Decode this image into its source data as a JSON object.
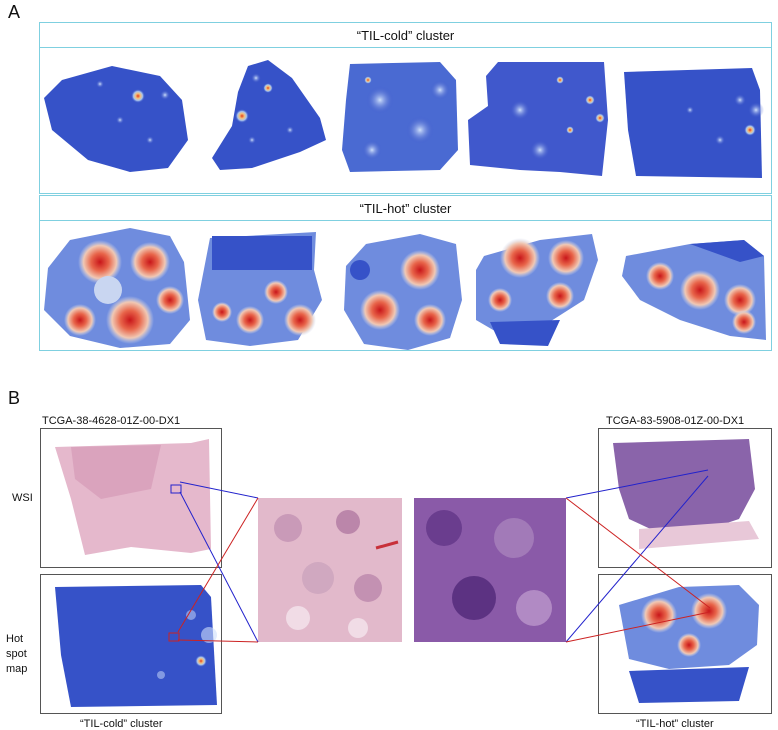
{
  "panel_a": {
    "letter": "A",
    "cold_title": "“TIL-cold” cluster",
    "hot_title": "“TIL-hot” cluster"
  },
  "panel_b": {
    "letter": "B",
    "left_sample_id": "TCGA-38-4628-01Z-00-DX1",
    "right_sample_id": "TCGA-83-5908-01Z-00-DX1",
    "row_label_wsi": "WSI",
    "row_label_hotspot": "Hot spot map",
    "left_caption": "“TIL-cold” cluster",
    "right_caption": "“TIL-hot” cluster"
  },
  "colors": {
    "cold_blue": "#3652c8",
    "hot_red": "#d62a1e",
    "box_border": "#7fd0e0",
    "connector_blue": "#2222cc",
    "connector_red": "#cc2222",
    "he_pink": "#e5b8cc",
    "he_purple": "#8a5aa8"
  }
}
